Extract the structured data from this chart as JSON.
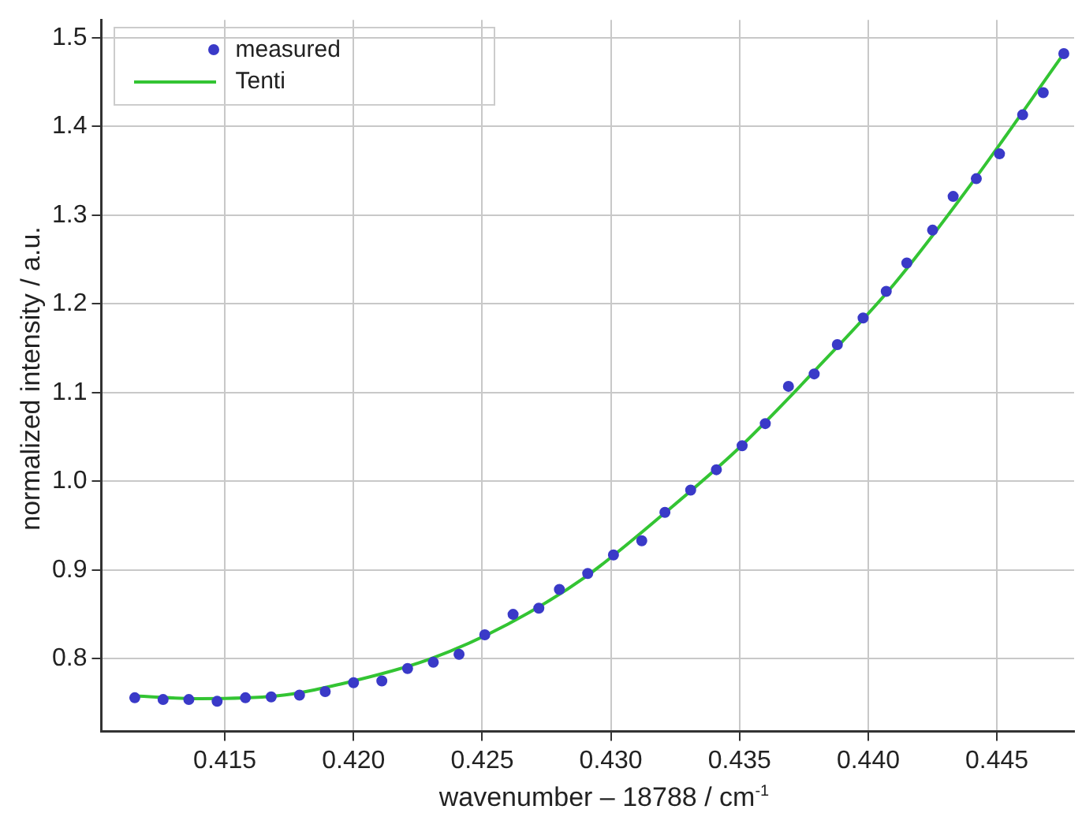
{
  "chart_data": {
    "type": "scatter",
    "xlabel": "wavenumber – 18788 / cm$^{-1}$",
    "ylabel": "normalized intensity / a.u.",
    "xlim": [
      0.4102,
      0.448
    ],
    "xticks": [
      0.415,
      {
        "value": 0.42,
        "label": "0.420"
      },
      0.425,
      {
        "value": 0.43,
        "label": "0.430"
      },
      0.435,
      {
        "value": 0.44,
        "label": "0.440"
      },
      0.445
    ],
    "ylim": [
      0.718,
      1.52
    ],
    "yticks": [
      0.8,
      0.9,
      {
        "value": 1,
        "label": "1.0"
      },
      1.1,
      1.2,
      1.3,
      1.4,
      1.5
    ],
    "grid": true,
    "legend": "top left",
    "series": [
      {
        "name": "measured",
        "type": "scatter",
        "marker": "circle",
        "color": "#3a3ac8",
        "x": [
          0.4115,
          0.4126,
          0.4136,
          0.4147,
          0.4158,
          0.4168,
          0.4179,
          0.4189,
          0.42,
          0.4211,
          0.4221,
          0.4231,
          0.4241,
          0.4251,
          0.4262,
          0.4272,
          0.428,
          0.4291,
          0.4301,
          0.4312,
          0.4321,
          0.4331,
          0.4341,
          0.4351,
          0.436,
          0.4369,
          0.4379,
          0.4388,
          0.4398,
          0.4407,
          0.4415,
          0.4425,
          0.4433,
          0.4442,
          0.4451,
          0.446,
          0.4468,
          0.4476
        ],
        "values": [
          0.756,
          0.754,
          0.754,
          0.752,
          0.756,
          0.757,
          0.759,
          0.763,
          0.773,
          0.775,
          0.789,
          0.796,
          0.805,
          0.827,
          0.85,
          0.857,
          0.878,
          0.896,
          0.917,
          0.933,
          0.965,
          0.99,
          1.013,
          1.04,
          1.065,
          1.107,
          1.121,
          1.154,
          1.184,
          1.214,
          1.246,
          1.283,
          1.321,
          1.341,
          1.369,
          1.413,
          1.438,
          1.482
        ]
      },
      {
        "name": "Tenti",
        "type": "line",
        "marker": "none",
        "line_style": "solid",
        "color": "#33c433",
        "x": [
          0.4115,
          0.414,
          0.417,
          0.42,
          0.423,
          0.426,
          0.429,
          0.432,
          0.435,
          0.438,
          0.441,
          0.444,
          0.4476
        ],
        "values": [
          0.758,
          0.755,
          0.758,
          0.775,
          0.8,
          0.839,
          0.892,
          0.962,
          1.038,
          1.127,
          1.222,
          1.335,
          1.482
        ]
      }
    ]
  }
}
